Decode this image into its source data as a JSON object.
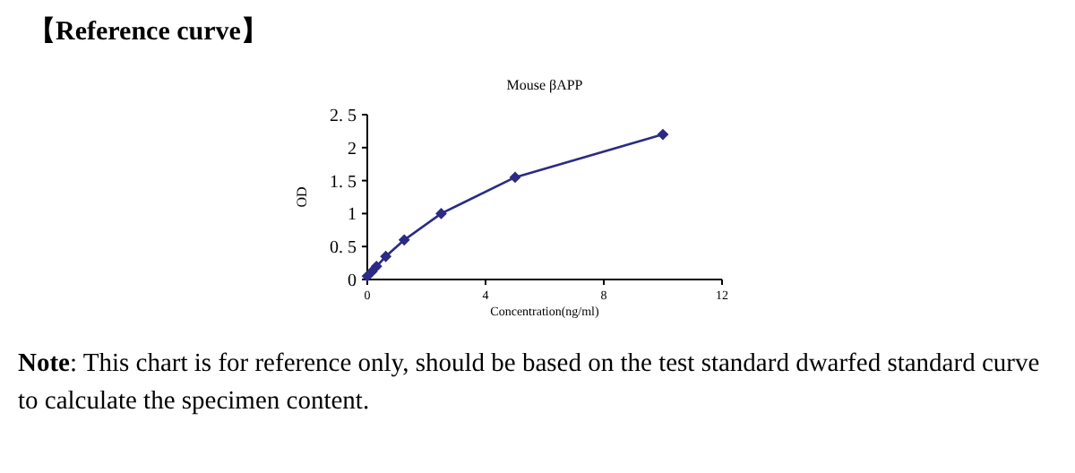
{
  "chart_data": {
    "type": "line",
    "title": "【Reference curve】",
    "subtitle": "Mouse βAPP",
    "xlabel": "Concentration(ng/ml)",
    "ylabel": "OD",
    "x": [
      0,
      0.156,
      0.312,
      0.625,
      1.25,
      2.5,
      5,
      10
    ],
    "series": [
      {
        "color": "#2b2b85",
        "values": [
          0.05,
          0.12,
          0.2,
          0.35,
          0.6,
          1.0,
          1.55,
          2.2
        ]
      }
    ],
    "xlim": [
      0,
      12
    ],
    "xticks": [
      0,
      4,
      8,
      12
    ],
    "ylim": [
      0,
      2.5
    ],
    "yticks": [
      {
        "value": 0,
        "label": "0"
      },
      {
        "value": 0.5,
        "label": "0. 5"
      },
      {
        "value": 1,
        "label": "1"
      },
      {
        "value": 1.5,
        "label": "1. 5"
      },
      {
        "value": 2,
        "label": "2"
      },
      {
        "value": 2.5,
        "label": "2. 5"
      }
    ],
    "marker": "diamond",
    "line_style": "solid",
    "annotations": [
      "Note: This chart is for reference only, should be based on the test standard dwarfed standard curve to calculate the specimen content."
    ]
  }
}
